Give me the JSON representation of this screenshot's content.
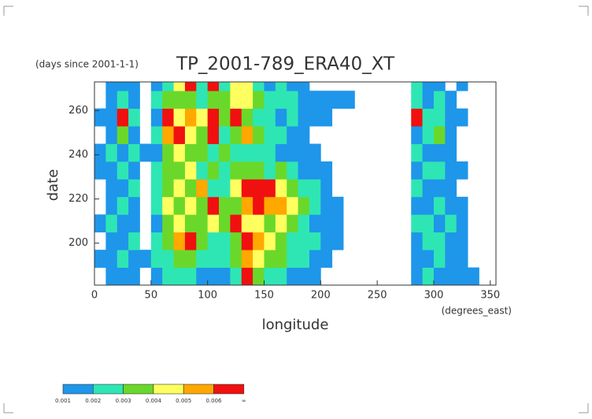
{
  "chart_data": {
    "type": "heatmap",
    "subtitle": "(days since 2001-1-1)",
    "title": "TP_2001-789_ERA40_XT",
    "xlabel": "longitude",
    "xunits": "(degrees_east)",
    "ylabel": "date",
    "xlim": [
      0,
      355
    ],
    "ylim": [
      181,
      273
    ],
    "xticks": [
      0,
      50,
      100,
      150,
      200,
      250,
      300,
      350
    ],
    "yticks": [
      200,
      220,
      240,
      260
    ],
    "x": [
      5,
      15,
      25,
      35,
      45,
      55,
      65,
      75,
      85,
      95,
      105,
      115,
      125,
      135,
      145,
      155,
      165,
      175,
      185,
      195,
      205,
      215,
      225,
      235,
      245,
      255,
      265,
      275,
      285,
      295,
      305,
      315,
      325,
      335,
      345
    ],
    "y": [
      185,
      193,
      201,
      209,
      217,
      225,
      233,
      241,
      249,
      257,
      265,
      273
    ],
    "z": [
      [
        0,
        0.0015,
        0.0015,
        0.0015,
        0,
        0.0015,
        0.0025,
        0.0025,
        0.0025,
        0.0015,
        0.0015,
        0.0015,
        0.0025,
        0.007,
        0.0035,
        0.0025,
        0.0025,
        0.0015,
        0.0015,
        0.0015,
        0,
        0,
        0,
        0,
        0,
        0,
        0,
        0,
        0.0015,
        0.0025,
        0.0015,
        0.0015,
        0.0015,
        0.0015,
        0
      ],
      [
        0.0015,
        0.0015,
        0.0025,
        0.0015,
        0.0015,
        0.0025,
        0.0025,
        0.0035,
        0.0035,
        0.0025,
        0.0025,
        0.0025,
        0.0035,
        0.0055,
        0.0045,
        0.0035,
        0.0035,
        0.0025,
        0.0025,
        0.0015,
        0.0015,
        0,
        0,
        0,
        0,
        0,
        0,
        0,
        0.0015,
        0.0015,
        0.0025,
        0.0015,
        0.0015,
        0,
        0
      ],
      [
        0,
        0.0015,
        0.0015,
        0.0025,
        0,
        0.0025,
        0.0035,
        0.0055,
        0.007,
        0.0035,
        0.0025,
        0.0025,
        0.0035,
        0.007,
        0.0055,
        0.0045,
        0.0035,
        0.0025,
        0.0025,
        0.0025,
        0.0015,
        0.0015,
        0,
        0,
        0,
        0,
        0,
        0,
        0.0015,
        0.0025,
        0.0025,
        0.0015,
        0.0015,
        0,
        0
      ],
      [
        0.0015,
        0.0025,
        0.0015,
        0.0015,
        0,
        0.0015,
        0.0035,
        0.0045,
        0.0035,
        0.0035,
        0.0045,
        0.0035,
        0.007,
        0.0045,
        0.0045,
        0.0035,
        0.0045,
        0.0035,
        0.0025,
        0.0015,
        0.0015,
        0.0015,
        0,
        0,
        0,
        0,
        0,
        0,
        0.0025,
        0.0025,
        0.0015,
        0.0025,
        0.0015,
        0,
        0
      ],
      [
        0,
        0.0015,
        0.0025,
        0.0015,
        0,
        0.0025,
        0.0045,
        0.0035,
        0.0045,
        0.0035,
        0.007,
        0.0035,
        0.0035,
        0.0055,
        0.007,
        0.0055,
        0.0055,
        0.0045,
        0.0035,
        0.0025,
        0.0015,
        0.0015,
        0,
        0,
        0,
        0,
        0,
        0,
        0.0015,
        0.0015,
        0.0025,
        0.0015,
        0.0015,
        0,
        0
      ],
      [
        0,
        0.0015,
        0.0015,
        0.0025,
        0,
        0.0025,
        0.0035,
        0.0045,
        0.0035,
        0.0055,
        0.0025,
        0.0025,
        0.0045,
        0.007,
        0.007,
        0.007,
        0.0045,
        0.0035,
        0.0025,
        0.0025,
        0.0015,
        0,
        0,
        0,
        0,
        0,
        0,
        0,
        0.0025,
        0.0015,
        0.0015,
        0.0015,
        0,
        0,
        0
      ],
      [
        0.0015,
        0.0015,
        0.0025,
        0.0015,
        0,
        0.0025,
        0.0035,
        0.0035,
        0.0045,
        0.0025,
        0.0035,
        0.0025,
        0.0035,
        0.0035,
        0.0035,
        0.0025,
        0.0035,
        0.0025,
        0.0015,
        0.0015,
        0.0015,
        0,
        0,
        0,
        0,
        0,
        0,
        0,
        0.0015,
        0.0025,
        0.0025,
        0.0015,
        0.0015,
        0,
        0
      ],
      [
        0.0015,
        0.0025,
        0.0015,
        0.0025,
        0.0015,
        0.0015,
        0.0035,
        0.0045,
        0.0035,
        0.0035,
        0.0025,
        0.0035,
        0.0025,
        0.0025,
        0.0025,
        0.0025,
        0.0015,
        0.0015,
        0.0015,
        0.0015,
        0,
        0,
        0,
        0,
        0,
        0,
        0,
        0,
        0.0025,
        0.0015,
        0.0015,
        0.0015,
        0,
        0,
        0
      ],
      [
        0,
        0.0015,
        0.0035,
        0.0015,
        0,
        0.0025,
        0.0055,
        0.007,
        0.0045,
        0.0035,
        0.007,
        0.0025,
        0.0035,
        0.0055,
        0.0035,
        0.0025,
        0.0025,
        0.0015,
        0.0015,
        0,
        0,
        0,
        0,
        0,
        0,
        0,
        0,
        0,
        0.0015,
        0.0025,
        0.0035,
        0.0015,
        0,
        0,
        0
      ],
      [
        0.0015,
        0.0015,
        0.007,
        0.0025,
        0,
        0.0015,
        0.007,
        0.0045,
        0.0055,
        0.0045,
        0.007,
        0.0035,
        0.007,
        0.0035,
        0.0025,
        0.0025,
        0.0015,
        0.0025,
        0.0015,
        0.0015,
        0.0015,
        0,
        0,
        0,
        0,
        0,
        0,
        0,
        0.007,
        0.0025,
        0.0025,
        0.0015,
        0.0015,
        0,
        0
      ],
      [
        0,
        0.0015,
        0.0025,
        0.0015,
        0,
        0.0025,
        0.0035,
        0.0035,
        0.0035,
        0.0025,
        0.0035,
        0.0035,
        0.0045,
        0.0045,
        0.0035,
        0.0025,
        0.0025,
        0.0025,
        0.0015,
        0.0015,
        0.0015,
        0.0015,
        0.0015,
        0,
        0,
        0,
        0,
        0,
        0.0025,
        0.0015,
        0.0025,
        0.0015,
        0,
        0,
        0
      ],
      [
        0,
        0.0015,
        0.0015,
        0.0015,
        0,
        0.0015,
        0.0025,
        0.0045,
        0.007,
        0.0025,
        0.007,
        0.0025,
        0.0045,
        0.0045,
        0.0025,
        0.0015,
        0.0025,
        0.0015,
        0.0015,
        0,
        0,
        0,
        0,
        0,
        0,
        0,
        0,
        0,
        0.0025,
        0.0015,
        0.0015,
        0,
        0.0015,
        0,
        0
      ]
    ],
    "colorbar": {
      "ticks": [
        0.001,
        0.002,
        0.003,
        0.004,
        0.005,
        0.006
      ],
      "end_label": "∞",
      "colors": [
        "#1e96ea",
        "#2ee6b4",
        "#6ad82a",
        "#ffff60",
        "#ffa800",
        "#f01010"
      ]
    }
  }
}
